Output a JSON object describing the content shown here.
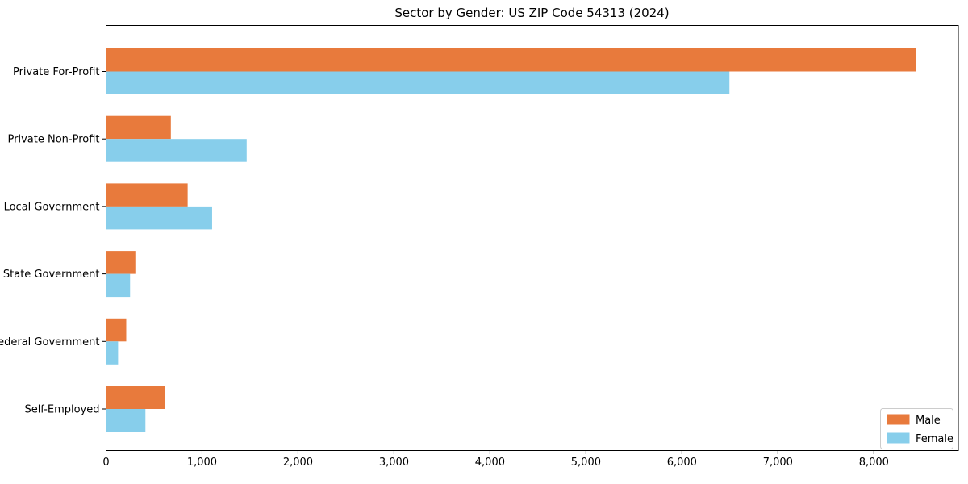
{
  "chart_data": {
    "type": "bar",
    "orientation": "horizontal",
    "title": "Sector by Gender: US ZIP Code 54313 (2024)",
    "categories": [
      "Private For-Profit",
      "Private Non-Profit",
      "Local Government",
      "State Government",
      "Federal Government",
      "Self-Employed"
    ],
    "series": [
      {
        "name": "Male",
        "color": "#E87A3C",
        "values": [
          8440,
          675,
          850,
          305,
          210,
          615
        ]
      },
      {
        "name": "Female",
        "color": "#87CEEB",
        "values": [
          6495,
          1465,
          1105,
          250,
          125,
          410
        ]
      }
    ],
    "xlabel": "",
    "ylabel": "",
    "xlim": [
      0,
      8880
    ],
    "xticks": [
      0,
      1000,
      2000,
      3000,
      4000,
      5000,
      6000,
      7000,
      8000
    ],
    "xtick_labels": [
      "0",
      "1,000",
      "2,000",
      "3,000",
      "4,000",
      "5,000",
      "6,000",
      "7,000",
      "8,000"
    ],
    "grid": false,
    "legend": {
      "position": "lower right",
      "entries": [
        "Male",
        "Female"
      ],
      "border_color": "#cccccc",
      "background": "#ffffff"
    },
    "colors": {
      "spine": "#000000",
      "background": "#ffffff"
    }
  }
}
